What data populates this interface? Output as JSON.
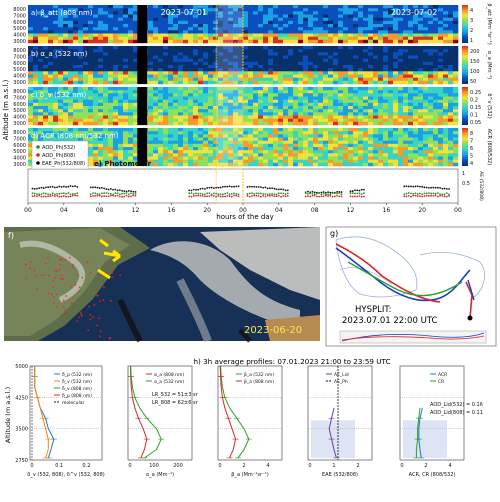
{
  "colors": {
    "background": "#ffffff",
    "colormap": [
      "#08306b",
      "#0b4fbd",
      "#19a0e6",
      "#39d4c2",
      "#8fe05a",
      "#f2e13b",
      "#f89a2a",
      "#d7301f",
      "#8b0000"
    ],
    "day_divider": "#f1c232",
    "highlight_box": "#f1c232",
    "photometer_green": "#2e8b2e",
    "photometer_red": "#d62728",
    "photometer_black": "#111111",
    "map_trajectory_red": "#d62728",
    "map_trajectory_blue": "#1f3fbf",
    "map_trajectory_green": "#2ca02c",
    "profile_blue": "#1f77b4",
    "profile_orange": "#ff7f0e",
    "profile_green": "#2ca02c",
    "profile_red": "#d62728",
    "profile_purple": "#6a3d9a",
    "molecular": "#222222"
  },
  "top_panels": {
    "ylabel": "Altitude (m a.s.l.)",
    "xlabel": "hours of the day",
    "date_left": "2023-07-01",
    "date_right": "2023-07-02",
    "hour_ticks": [
      "00",
      "04",
      "08",
      "12",
      "16",
      "20",
      "00",
      "04",
      "08",
      "12",
      "16",
      "20",
      "00"
    ],
    "panels": [
      {
        "id": "a",
        "label": "a) β_att (808 nm)",
        "cbar_label": "β_att (Mm⁻¹sr⁻¹)",
        "cbar_ticks": [
          "4",
          "3",
          "2",
          "1"
        ]
      },
      {
        "id": "b",
        "label": "b) α_a (532 nm)",
        "cbar_label": "α_a (Mm⁻¹)",
        "cbar_ticks": [
          "200",
          "150",
          "100",
          "50"
        ]
      },
      {
        "id": "c",
        "label": "c) δ_v (532 nm)",
        "cbar_label": "δ^v (532)",
        "cbar_ticks": [
          "0.25",
          "0.2",
          "0.15",
          "0.1",
          "0.05"
        ]
      },
      {
        "id": "d",
        "label": "d) ACR (808 nm/532 nm)",
        "cbar_label": "ACR (808/532)",
        "cbar_ticks": [
          "8",
          "7",
          "6",
          "5",
          "4"
        ]
      }
    ],
    "yticks": [
      "8000",
      "7000",
      "6000",
      "5000",
      "4000",
      "3000"
    ],
    "photometer": {
      "label": "e) Photometer",
      "legend": [
        "AOD_Ph(532)",
        "AOD_Ph(808)",
        "EAE_Ph(532/808)"
      ],
      "right_ticks": [
        "1",
        "0.5"
      ],
      "right_label": "AE (532/808)"
    }
  },
  "map_f": {
    "label": "f)",
    "date": "2023-06-20"
  },
  "map_g": {
    "label": "g)",
    "title_line1": "HYSPLIT:",
    "title_line2": "2023.07.01 22:00 UTC"
  },
  "profiles": {
    "title": "h) 3h average profiles: 07.01.2023 21:00 to 23:59 UTC",
    "ylabel": "Altitude (m a.s.l.)",
    "yticks": [
      "5000",
      "4250",
      "3500",
      "2750"
    ],
    "panel1": {
      "legend": [
        "δ_p (532 nm)",
        "δ_v (532 nm)",
        "δ_v (808 nm)",
        "δ_p (808 nm)",
        "molecular"
      ],
      "xlabel": "δ_v (532, 808), δ^v (532, 808)",
      "xticks": [
        "0",
        "0.1",
        "0.2"
      ]
    },
    "panel2": {
      "legend": [
        "α_a (808 nm)",
        "α_a (532 nm)"
      ],
      "xlabel": "α_a (Mm⁻¹)",
      "xticks": [
        "0",
        "100",
        "200"
      ],
      "annotation1": "LR_532 = 51±3 sr",
      "annotation2": "LR_808 = 62±6 sr"
    },
    "panel3": {
      "legend": [
        "β_a (532 nm)",
        "β_a (808 nm)"
      ],
      "xlabel": "β_a (Mm⁻¹sr⁻¹)",
      "xticks": [
        "0",
        "2",
        "4"
      ]
    },
    "panel4": {
      "legend": [
        "AE_Lid",
        "AE_Ph"
      ],
      "xlabel": "EAE (532/808)",
      "xticks": [
        "0",
        "1",
        "2"
      ]
    },
    "panel5": {
      "legend": [
        "ACR",
        "CR"
      ],
      "xlabel": "ACR, CR (808/532)",
      "xticks": [
        "0",
        "2",
        "4"
      ],
      "annotation1": "AOD_Lid(532) = 0.16",
      "annotation2": "AOD_Lid(808) = 0.11"
    }
  },
  "chart_data": [
    {
      "type": "heatmap",
      "title": "a) β_att (808 nm)",
      "ylabel": "Altitude (m a.s.l.)",
      "xlabel": "hours of the day",
      "ylim": [
        2500,
        8500
      ],
      "xlim": [
        0,
        48
      ]
    },
    {
      "type": "heatmap",
      "title": "b) α_a (532 nm)",
      "ylim": [
        2500,
        8500
      ],
      "xlim": [
        0,
        48
      ]
    },
    {
      "type": "heatmap",
      "title": "c) δ_v (532 nm)",
      "ylim": [
        2500,
        8500
      ],
      "xlim": [
        0,
        48
      ]
    },
    {
      "type": "heatmap",
      "title": "d) ACR (808 nm/532 nm)",
      "ylim": [
        2500,
        8500
      ],
      "xlim": [
        0,
        48
      ]
    },
    {
      "type": "scatter",
      "title": "e) Photometer",
      "series": [
        {
          "name": "AOD_Ph(532)"
        },
        {
          "name": "AOD_Ph(808)"
        },
        {
          "name": "EAE_Ph(532/808)"
        }
      ]
    },
    {
      "type": "line",
      "title": "h) 3h average profiles: 07.01.2023 21:00 to 23:59 UTC",
      "ylim": [
        2750,
        5000
      ],
      "series": [
        {
          "name": "δ_p (532 nm)",
          "y": [
            2800,
            3000,
            3250,
            3500,
            3750,
            4000,
            4250,
            4500,
            4750,
            5000
          ],
          "values": [
            0.06,
            0.07,
            0.08,
            0.06,
            0.05,
            0.03,
            0.02,
            0.01,
            0.01,
            0.01
          ]
        },
        {
          "name": "δ_v (532 nm)",
          "y": [
            2800,
            3000,
            3250,
            3500,
            3750,
            4000,
            4250,
            4500,
            4750,
            5000
          ],
          "values": [
            0.05,
            0.06,
            0.06,
            0.05,
            0.04,
            0.03,
            0.02,
            0.01,
            0.01,
            0.01
          ]
        },
        {
          "name": "α_a (808 nm)",
          "y": [
            2800,
            3000,
            3250,
            3500,
            3750,
            4000,
            4250,
            4500,
            4750,
            5000
          ],
          "values": [
            45,
            60,
            70,
            55,
            35,
            20,
            10,
            5,
            3,
            2
          ]
        },
        {
          "name": "α_a (532 nm)",
          "y": [
            2800,
            3000,
            3250,
            3500,
            3750,
            4000,
            4250,
            4500,
            4750,
            5000
          ],
          "values": [
            60,
            110,
            130,
            110,
            70,
            40,
            20,
            10,
            5,
            3
          ]
        },
        {
          "name": "β_a (532 nm)",
          "y": [
            2800,
            3000,
            3250,
            3500,
            3750,
            4000,
            4250,
            4500,
            4750,
            5000
          ],
          "values": [
            1.5,
            2.0,
            2.4,
            2.0,
            1.4,
            0.8,
            0.4,
            0.2,
            0.1,
            0.05
          ]
        },
        {
          "name": "β_a (808 nm)",
          "y": [
            2800,
            3000,
            3250,
            3500,
            3750,
            4000,
            4250,
            4500,
            4750,
            5000
          ],
          "values": [
            0.8,
            1.1,
            1.3,
            1.0,
            0.7,
            0.4,
            0.2,
            0.1,
            0.05,
            0.02
          ]
        },
        {
          "name": "AE_Lid",
          "y": [
            2800,
            3000,
            3250,
            3500,
            3750,
            4000
          ],
          "values": [
            1.1,
            1.0,
            0.9,
            0.8,
            0.9,
            1.0
          ]
        },
        {
          "name": "ACR",
          "y": [
            2800,
            3000,
            3250,
            3500,
            3750,
            4000
          ],
          "values": [
            1.6,
            1.5,
            1.4,
            1.4,
            1.5,
            1.7
          ]
        },
        {
          "name": "CR",
          "y": [
            2800,
            3000,
            3250,
            3500,
            3750,
            4000
          ],
          "values": [
            1.2,
            1.2,
            1.3,
            1.3,
            1.4,
            1.5
          ]
        }
      ]
    }
  ]
}
